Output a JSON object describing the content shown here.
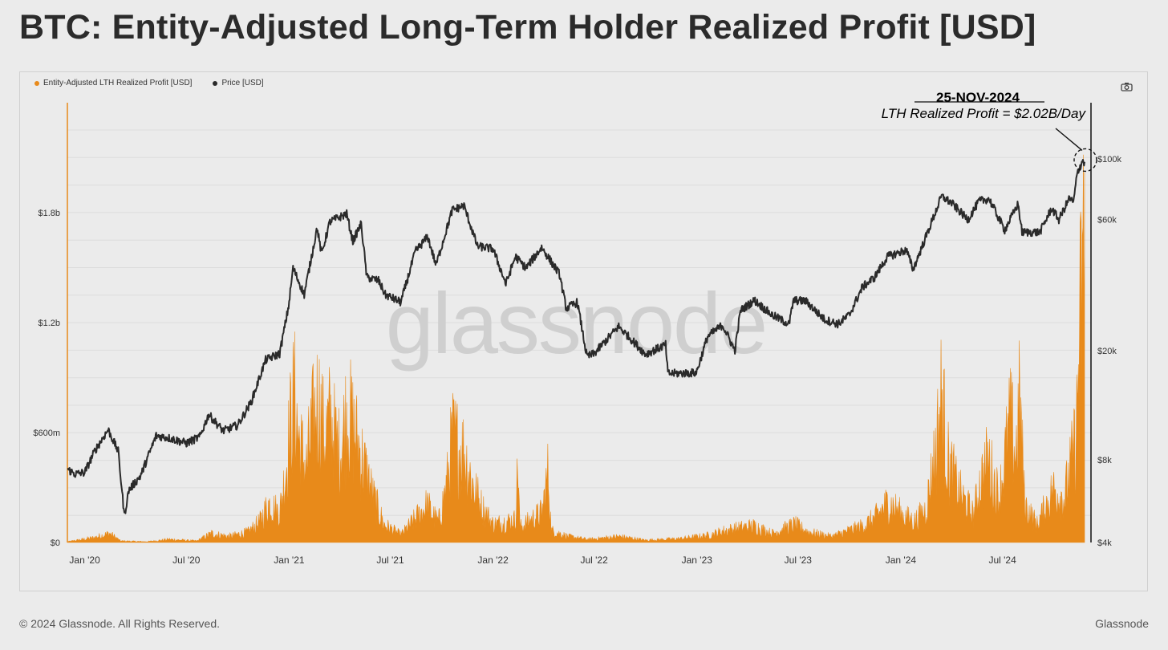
{
  "page": {
    "title": "BTC: Entity-Adjusted Long-Term Holder Realized Profit [USD]",
    "footer_left": "© 2024 Glassnode. All Rights Reserved.",
    "footer_right": "Glassnode",
    "watermark": "glassnode"
  },
  "colors": {
    "profit": "#e88a1a",
    "price": "#2a2a2a",
    "grid": "#dcdcdc",
    "background": "#ebebeb"
  },
  "chart_data": {
    "type": "area",
    "title": "BTC: Entity-Adjusted Long-Term Holder Realized Profit [USD]",
    "legend": [
      {
        "name": "Entity-Adjusted LTH Realized Profit [USD]",
        "color": "#e88a1a"
      },
      {
        "name": "Price [USD]",
        "color": "#2a2a2a"
      }
    ],
    "x_axis": {
      "start": "2019-12-01",
      "end": "2024-11-25",
      "ticks": [
        "Jan '20",
        "Jul '20",
        "Jan '21",
        "Jul '21",
        "Jan '22",
        "Jul '22",
        "Jan '23",
        "Jul '23",
        "Jan '24",
        "Jul '24"
      ]
    },
    "y_left": {
      "label": "Entity-Adjusted LTH Realized Profit [USD]",
      "ticks": [
        "$0",
        "$600m",
        "$1.2b",
        "$1.8b"
      ],
      "tick_values": [
        0,
        600000000,
        1200000000,
        1800000000
      ],
      "range": [
        0,
        2400000000
      ]
    },
    "y_right": {
      "label": "Price [USD]",
      "scale": "log",
      "ticks": [
        "$4k",
        "$8k",
        "$20k",
        "$60k",
        "$100k"
      ],
      "tick_values": [
        4000,
        8000,
        20000,
        60000,
        100000
      ],
      "range": [
        4000,
        160000
      ]
    },
    "series": [
      {
        "name": "Price [USD]",
        "axis": "right",
        "type": "line",
        "points": [
          [
            "2019-12-01",
            7400
          ],
          [
            "2019-12-15",
            7100
          ],
          [
            "2020-01-01",
            7200
          ],
          [
            "2020-01-20",
            8700
          ],
          [
            "2020-02-12",
            10300
          ],
          [
            "2020-03-01",
            8600
          ],
          [
            "2020-03-12",
            5000
          ],
          [
            "2020-03-20",
            6200
          ],
          [
            "2020-04-10",
            7000
          ],
          [
            "2020-05-08",
            9800
          ],
          [
            "2020-06-01",
            9600
          ],
          [
            "2020-07-01",
            9200
          ],
          [
            "2020-07-25",
            9700
          ],
          [
            "2020-08-10",
            11700
          ],
          [
            "2020-09-05",
            10200
          ],
          [
            "2020-10-01",
            10700
          ],
          [
            "2020-10-25",
            13000
          ],
          [
            "2020-11-20",
            18500
          ],
          [
            "2020-12-15",
            19500
          ],
          [
            "2020-12-31",
            29000
          ],
          [
            "2021-01-08",
            40000
          ],
          [
            "2021-01-28",
            32000
          ],
          [
            "2021-02-20",
            56000
          ],
          [
            "2021-02-28",
            45000
          ],
          [
            "2021-03-15",
            59000
          ],
          [
            "2021-04-14",
            63000
          ],
          [
            "2021-04-25",
            50000
          ],
          [
            "2021-05-10",
            58000
          ],
          [
            "2021-05-20",
            37000
          ],
          [
            "2021-06-10",
            36000
          ],
          [
            "2021-06-22",
            32000
          ],
          [
            "2021-07-20",
            30000
          ],
          [
            "2021-08-15",
            46000
          ],
          [
            "2021-09-06",
            52000
          ],
          [
            "2021-09-21",
            41000
          ],
          [
            "2021-10-20",
            65000
          ],
          [
            "2021-11-10",
            67500
          ],
          [
            "2021-12-04",
            48000
          ],
          [
            "2022-01-01",
            47000
          ],
          [
            "2022-01-24",
            35000
          ],
          [
            "2022-02-10",
            44000
          ],
          [
            "2022-03-01",
            40000
          ],
          [
            "2022-03-29",
            47500
          ],
          [
            "2022-04-30",
            38000
          ],
          [
            "2022-05-12",
            28500
          ],
          [
            "2022-06-01",
            30000
          ],
          [
            "2022-06-18",
            19000
          ],
          [
            "2022-07-01",
            19500
          ],
          [
            "2022-08-14",
            24500
          ],
          [
            "2022-09-10",
            21500
          ],
          [
            "2022-10-01",
            19400
          ],
          [
            "2022-11-06",
            21000
          ],
          [
            "2022-11-10",
            16500
          ],
          [
            "2022-12-31",
            16600
          ],
          [
            "2023-01-20",
            22500
          ],
          [
            "2023-02-16",
            24800
          ],
          [
            "2023-03-10",
            20000
          ],
          [
            "2023-03-20",
            28000
          ],
          [
            "2023-04-14",
            30500
          ],
          [
            "2023-05-15",
            27000
          ],
          [
            "2023-06-15",
            25000
          ],
          [
            "2023-06-23",
            30500
          ],
          [
            "2023-07-15",
            30300
          ],
          [
            "2023-08-17",
            26000
          ],
          [
            "2023-09-11",
            25000
          ],
          [
            "2023-10-01",
            27000
          ],
          [
            "2023-10-24",
            34000
          ],
          [
            "2023-11-15",
            37000
          ],
          [
            "2023-12-08",
            44000
          ],
          [
            "2024-01-11",
            46500
          ],
          [
            "2024-01-23",
            39500
          ],
          [
            "2024-02-15",
            52000
          ],
          [
            "2024-03-14",
            73000
          ],
          [
            "2024-04-01",
            69000
          ],
          [
            "2024-04-30",
            60000
          ],
          [
            "2024-05-20",
            70000
          ],
          [
            "2024-06-07",
            71500
          ],
          [
            "2024-07-05",
            55000
          ],
          [
            "2024-07-29",
            68500
          ],
          [
            "2024-08-05",
            54000
          ],
          [
            "2024-09-06",
            54000
          ],
          [
            "2024-09-27",
            66000
          ],
          [
            "2024-10-10",
            60000
          ],
          [
            "2024-10-29",
            72000
          ],
          [
            "2024-11-05",
            69000
          ],
          [
            "2024-11-12",
            89000
          ],
          [
            "2024-11-22",
            99000
          ],
          [
            "2024-11-25",
            95000
          ]
        ]
      },
      {
        "name": "Entity-Adjusted LTH Realized Profit [USD]",
        "axis": "left",
        "type": "area",
        "points": [
          [
            "2019-12-01",
            5000000
          ],
          [
            "2020-01-15",
            30000000
          ],
          [
            "2020-02-15",
            60000000
          ],
          [
            "2020-03-05",
            10000000
          ],
          [
            "2020-04-20",
            5000000
          ],
          [
            "2020-06-01",
            20000000
          ],
          [
            "2020-07-20",
            10000000
          ],
          [
            "2020-08-15",
            60000000
          ],
          [
            "2020-09-15",
            40000000
          ],
          [
            "2020-10-20",
            70000000
          ],
          [
            "2020-11-10",
            140000000
          ],
          [
            "2020-11-25",
            260000000
          ],
          [
            "2020-12-15",
            200000000
          ],
          [
            "2020-12-25",
            450000000
          ],
          [
            "2021-01-05",
            850000000
          ],
          [
            "2021-01-10",
            980000000
          ],
          [
            "2021-01-20",
            650000000
          ],
          [
            "2021-02-01",
            500000000
          ],
          [
            "2021-02-10",
            750000000
          ],
          [
            "2021-02-22",
            960000000
          ],
          [
            "2021-03-05",
            700000000
          ],
          [
            "2021-03-15",
            820000000
          ],
          [
            "2021-04-01",
            600000000
          ],
          [
            "2021-04-15",
            880000000
          ],
          [
            "2021-05-01",
            700000000
          ],
          [
            "2021-05-15",
            520000000
          ],
          [
            "2021-06-01",
            300000000
          ],
          [
            "2021-06-20",
            120000000
          ],
          [
            "2021-07-20",
            50000000
          ],
          [
            "2021-08-20",
            180000000
          ],
          [
            "2021-09-05",
            250000000
          ],
          [
            "2021-09-25",
            130000000
          ],
          [
            "2021-10-10",
            380000000
          ],
          [
            "2021-10-20",
            700000000
          ],
          [
            "2021-11-10",
            600000000
          ],
          [
            "2021-11-25",
            400000000
          ],
          [
            "2021-12-10",
            250000000
          ],
          [
            "2022-01-01",
            120000000
          ],
          [
            "2022-02-10",
            150000000
          ],
          [
            "2022-02-15",
            560000000
          ],
          [
            "2022-02-18",
            100000000
          ],
          [
            "2022-03-30",
            200000000
          ],
          [
            "2022-04-10",
            480000000
          ],
          [
            "2022-04-15",
            80000000
          ],
          [
            "2022-05-15",
            40000000
          ],
          [
            "2022-06-20",
            20000000
          ],
          [
            "2022-08-15",
            40000000
          ],
          [
            "2022-10-01",
            15000000
          ],
          [
            "2022-12-01",
            25000000
          ],
          [
            "2023-01-25",
            50000000
          ],
          [
            "2023-02-20",
            80000000
          ],
          [
            "2023-03-25",
            100000000
          ],
          [
            "2023-04-15",
            110000000
          ],
          [
            "2023-05-15",
            60000000
          ],
          [
            "2023-06-25",
            120000000
          ],
          [
            "2023-07-20",
            70000000
          ],
          [
            "2023-08-30",
            40000000
          ],
          [
            "2023-10-25",
            110000000
          ],
          [
            "2023-11-15",
            160000000
          ],
          [
            "2023-12-10",
            270000000
          ],
          [
            "2024-01-05",
            180000000
          ],
          [
            "2024-01-25",
            140000000
          ],
          [
            "2024-02-15",
            220000000
          ],
          [
            "2024-03-05",
            650000000
          ],
          [
            "2024-03-14",
            990000000
          ],
          [
            "2024-03-25",
            550000000
          ],
          [
            "2024-04-15",
            330000000
          ],
          [
            "2024-05-10",
            180000000
          ],
          [
            "2024-05-22",
            400000000
          ],
          [
            "2024-06-05",
            550000000
          ],
          [
            "2024-06-25",
            300000000
          ],
          [
            "2024-07-15",
            800000000
          ],
          [
            "2024-07-25",
            600000000
          ],
          [
            "2024-08-01",
            950000000
          ],
          [
            "2024-08-10",
            250000000
          ],
          [
            "2024-09-01",
            120000000
          ],
          [
            "2024-09-30",
            350000000
          ],
          [
            "2024-10-20",
            300000000
          ],
          [
            "2024-10-31",
            500000000
          ],
          [
            "2024-11-10",
            700000000
          ],
          [
            "2024-11-15",
            1300000000
          ],
          [
            "2024-11-20",
            1700000000
          ],
          [
            "2024-11-25",
            2020000000
          ]
        ]
      }
    ],
    "annotation": {
      "date": "25-NOV-2024",
      "text": "LTH Realized Profit = $2.02B/Day",
      "at": [
        "2024-11-25",
        95000
      ]
    }
  }
}
